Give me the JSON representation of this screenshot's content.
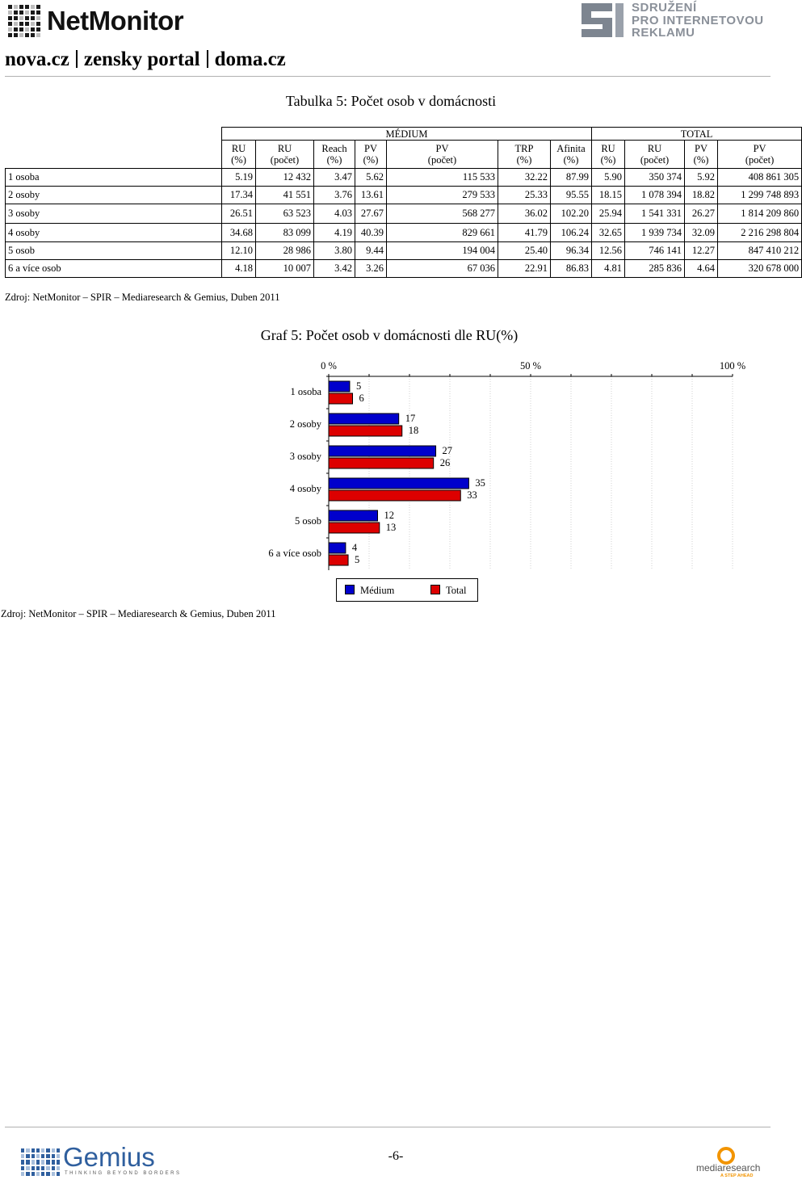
{
  "header": {
    "netmonitor_logo": "NetMonitor",
    "spir_logo_lines": [
      "SDRUŽENÍ",
      "PRO INTERNETOVOU",
      "REKLAMU"
    ],
    "site_parts": [
      "nova.cz",
      "zensky portal",
      "doma.cz"
    ]
  },
  "table": {
    "title": "Tabulka 5: Počet osob v domácnosti",
    "group_medium": "MÉDIUM",
    "group_total": "TOTAL",
    "columns": [
      {
        "l1": "RU",
        "l2": "(%)"
      },
      {
        "l1": "RU",
        "l2": "(počet)"
      },
      {
        "l1": "Reach",
        "l2": "(%)"
      },
      {
        "l1": "PV",
        "l2": "(%)"
      },
      {
        "l1": "PV",
        "l2": "(počet)"
      },
      {
        "l1": "TRP",
        "l2": "(%)"
      },
      {
        "l1": "Afinita",
        "l2": "(%)"
      },
      {
        "l1": "RU",
        "l2": "(%)"
      },
      {
        "l1": "RU",
        "l2": "(počet)"
      },
      {
        "l1": "PV",
        "l2": "(%)"
      },
      {
        "l1": "PV",
        "l2": "(počet)"
      }
    ],
    "rows": [
      {
        "label": "1 osoba",
        "values": [
          "5.19",
          "12 432",
          "3.47",
          "5.62",
          "115 533",
          "32.22",
          "87.99",
          "5.90",
          "350 374",
          "5.92",
          "408 861 305"
        ]
      },
      {
        "label": "2 osoby",
        "values": [
          "17.34",
          "41 551",
          "3.76",
          "13.61",
          "279 533",
          "25.33",
          "95.55",
          "18.15",
          "1 078 394",
          "18.82",
          "1 299 748 893"
        ]
      },
      {
        "label": "3 osoby",
        "values": [
          "26.51",
          "63 523",
          "4.03",
          "27.67",
          "568 277",
          "36.02",
          "102.20",
          "25.94",
          "1 541 331",
          "26.27",
          "1 814 209 860"
        ]
      },
      {
        "label": "4 osoby",
        "values": [
          "34.68",
          "83 099",
          "4.19",
          "40.39",
          "829 661",
          "41.79",
          "106.24",
          "32.65",
          "1 939 734",
          "32.09",
          "2 216 298 804"
        ]
      },
      {
        "label": "5 osob",
        "values": [
          "12.10",
          "28 986",
          "3.80",
          "9.44",
          "194 004",
          "25.40",
          "96.34",
          "12.56",
          "746 141",
          "12.27",
          "847 410 212"
        ]
      },
      {
        "label": "6 a více osob",
        "values": [
          "4.18",
          "10 007",
          "3.42",
          "3.26",
          "67 036",
          "22.91",
          "86.83",
          "4.81",
          "285 836",
          "4.64",
          "320 678 000"
        ]
      }
    ],
    "source": "Zdroj: NetMonitor – SPIR – Mediaresearch & Gemius, Duben 2011"
  },
  "chart_data": {
    "type": "bar",
    "orientation": "horizontal",
    "title": "Graf 5: Počet osob v domácnosti dle RU(%)",
    "categories": [
      "1 osoba",
      "2 osoby",
      "3 osoby",
      "4 osoby",
      "5 osob",
      "6 a více osob"
    ],
    "series": [
      {
        "name": "Médium",
        "values": [
          5.19,
          17.34,
          26.51,
          34.68,
          12.1,
          4.18
        ],
        "labels": [
          "5",
          "17",
          "27",
          "35",
          "12",
          "4"
        ],
        "color": "#0000cc"
      },
      {
        "name": "Total",
        "values": [
          5.9,
          18.15,
          25.94,
          32.65,
          12.56,
          4.81
        ],
        "labels": [
          "6",
          "18",
          "26",
          "33",
          "13",
          "5"
        ],
        "color": "#dd0000"
      }
    ],
    "xlim": [
      0,
      100
    ],
    "xticks": [
      "0 %",
      "50 %",
      "100 %"
    ],
    "grid": true,
    "legend_position": "bottom",
    "source": "Zdroj: NetMonitor – SPIR – Mediaresearch & Gemius, Duben 2011"
  },
  "footer": {
    "page_number": "-6-",
    "gemius_logo": "Gemius",
    "gemius_tagline": "THINKING BEYOND BORDERS",
    "mediaresearch_logo": "mediaresearch",
    "mediaresearch_tagline": "A STEP AHEAD"
  }
}
